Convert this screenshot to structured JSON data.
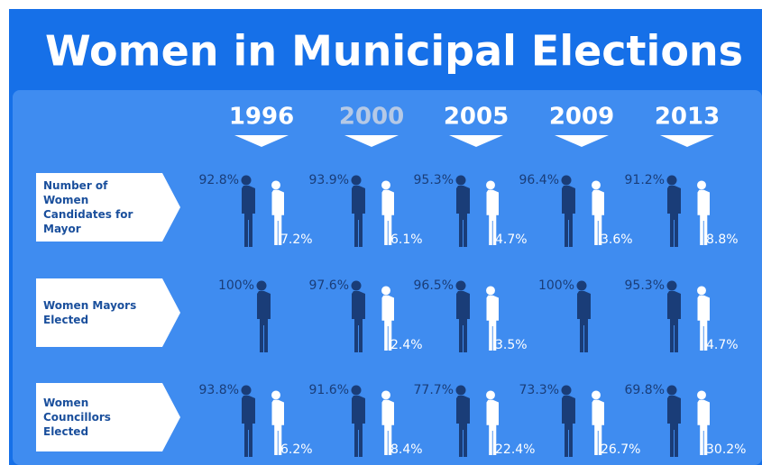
{
  "title": "Women in Municipal Elections",
  "years": [
    "1996",
    "2000",
    "2005",
    "2009",
    "2013"
  ],
  "rows": [
    {
      "label": "Number of Women Candidates for Mayor",
      "cells": [
        {
          "men": "92.8%",
          "women": "7.2%"
        },
        {
          "men": "93.9%",
          "women": "6.1%"
        },
        {
          "men": "95.3%",
          "women": "4.7%"
        },
        {
          "men": "96.4%",
          "women": "3.6%"
        },
        {
          "men": "91.2%",
          "women": "8.8%"
        }
      ]
    },
    {
      "label": "Women Mayors Elected",
      "cells": [
        {
          "men": "100%"
        },
        {
          "men": "97.6%",
          "women": "2.4%"
        },
        {
          "men": "96.5%",
          "women": "3.5%"
        },
        {
          "men": "100%"
        },
        {
          "men": "95.3%",
          "women": "4.7%"
        }
      ]
    },
    {
      "label": "Women Councillors Elected",
      "cells": [
        {
          "men": "93.8%",
          "women": "6.2%"
        },
        {
          "men": "91.6%",
          "women": "8.4%"
        },
        {
          "men": "77.7%",
          "women": "22.4%"
        },
        {
          "men": "73.3%",
          "women": "26.7%"
        },
        {
          "men": "69.8%",
          "women": "30.2%"
        }
      ]
    }
  ]
}
